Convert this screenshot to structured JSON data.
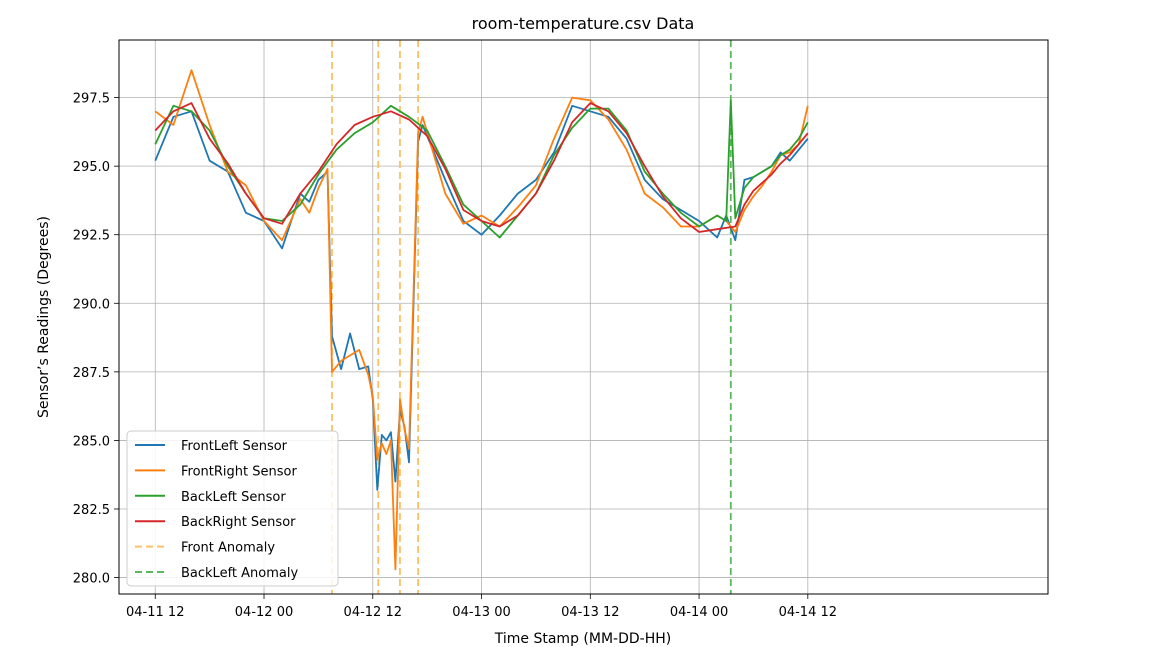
{
  "chart_data": {
    "type": "line",
    "title": "room-temperature.csv Data",
    "xlabel": "Time Stamp (MM-DD-HH)",
    "ylabel": "Sensor’s Readings (Degrees)",
    "x_unit": "hours",
    "x_origin": "04-11 12",
    "xlim": [
      -4,
      98.5
    ],
    "ylim": [
      279.4,
      299.6
    ],
    "x_ticks": [
      {
        "x": 0,
        "label": "04-11 12"
      },
      {
        "x": 12,
        "label": "04-12 00"
      },
      {
        "x": 24,
        "label": "04-12 12"
      },
      {
        "x": 36,
        "label": "04-13 00"
      },
      {
        "x": 48,
        "label": "04-13 12"
      },
      {
        "x": 60,
        "label": "04-14 00"
      },
      {
        "x": 72,
        "label": "04-14 12"
      }
    ],
    "y_ticks": [
      {
        "y": 280.0,
        "label": "280.0"
      },
      {
        "y": 282.5,
        "label": "282.5"
      },
      {
        "y": 285.0,
        "label": "285.0"
      },
      {
        "y": 287.5,
        "label": "287.5"
      },
      {
        "y": 290.0,
        "label": "290.0"
      },
      {
        "y": 292.5,
        "label": "292.5"
      },
      {
        "y": 295.0,
        "label": "295.0"
      },
      {
        "y": 297.5,
        "label": "297.5"
      }
    ],
    "grid": true,
    "legend_position": "lower-left",
    "series": [
      {
        "name": "FrontLeft Sensor",
        "color": "#1f77b4",
        "x": [
          0,
          2,
          4,
          6,
          8,
          10,
          12,
          14,
          16,
          17,
          18,
          19,
          19.5,
          20.5,
          21.5,
          22.5,
          23.5,
          24,
          24.5,
          25,
          25.5,
          26,
          26.5,
          27,
          27.5,
          28,
          29,
          29.5,
          32,
          34,
          36,
          38,
          40,
          42,
          44,
          46,
          48,
          50,
          52,
          54,
          56,
          58,
          60,
          62,
          63,
          64,
          65,
          66,
          67,
          68,
          69,
          70,
          71,
          72
        ],
        "y": [
          295.2,
          296.8,
          297.0,
          295.2,
          294.8,
          293.3,
          293.0,
          292.0,
          294.0,
          293.7,
          294.5,
          294.8,
          288.8,
          287.6,
          288.9,
          287.6,
          287.7,
          286.5,
          283.2,
          285.2,
          285.0,
          285.3,
          283.5,
          286.1,
          285.5,
          284.2,
          295.9,
          296.5,
          294.5,
          293.0,
          292.5,
          293.2,
          294.0,
          294.5,
          295.5,
          297.2,
          297.0,
          296.8,
          296.0,
          294.5,
          293.8,
          293.4,
          293.0,
          292.4,
          293.2,
          292.3,
          294.5,
          294.6,
          294.8,
          295.0,
          295.5,
          295.2,
          295.6,
          296.0
        ]
      },
      {
        "name": "FrontRight Sensor",
        "color": "#ff7f0e",
        "x": [
          0,
          2,
          4,
          6,
          8,
          10,
          12,
          14,
          16,
          17,
          18,
          19,
          19.5,
          20.5,
          21.5,
          22.5,
          23.5,
          24,
          24.5,
          25,
          25.5,
          26,
          26.5,
          27,
          27.5,
          28,
          29,
          29.5,
          32,
          34,
          36,
          38,
          40,
          42,
          44,
          46,
          48,
          50,
          52,
          54,
          56,
          58,
          60,
          62,
          63,
          64,
          65,
          66,
          67,
          68,
          69,
          70,
          71,
          72
        ],
        "y": [
          297.0,
          296.5,
          298.5,
          296.5,
          294.8,
          294.3,
          293.0,
          292.3,
          293.8,
          293.3,
          294.2,
          294.9,
          287.5,
          287.9,
          288.1,
          288.3,
          287.4,
          286.6,
          284.3,
          284.9,
          284.5,
          285.0,
          280.3,
          286.5,
          285.4,
          284.7,
          296.2,
          296.8,
          294.0,
          292.9,
          293.2,
          292.8,
          293.5,
          294.3,
          296.0,
          297.5,
          297.4,
          296.7,
          295.6,
          294.0,
          293.5,
          292.8,
          292.8,
          293.2,
          293.0,
          292.6,
          293.4,
          293.9,
          294.3,
          294.8,
          295.4,
          295.5,
          295.8,
          297.2
        ]
      },
      {
        "name": "BackLeft Sensor",
        "color": "#2ca02c",
        "x": [
          0,
          2,
          4,
          6,
          8,
          10,
          12,
          14,
          16,
          18,
          20,
          22,
          24,
          26,
          28,
          30,
          32,
          34,
          36,
          38,
          40,
          42,
          44,
          46,
          48,
          50,
          52,
          54,
          56,
          58,
          60,
          62,
          63,
          63.5,
          64,
          65,
          66,
          67,
          68,
          69,
          70,
          71,
          72
        ],
        "y": [
          295.8,
          297.2,
          297.0,
          296.3,
          295.0,
          294.0,
          293.1,
          293.0,
          293.6,
          294.7,
          295.6,
          296.2,
          296.6,
          297.2,
          296.8,
          296.3,
          295.0,
          293.6,
          293.0,
          292.4,
          293.2,
          294.0,
          295.4,
          296.4,
          297.1,
          297.1,
          296.3,
          294.8,
          294.0,
          293.3,
          292.8,
          293.2,
          293.0,
          297.4,
          293.1,
          294.2,
          294.6,
          294.8,
          295.0,
          295.4,
          295.6,
          296.0,
          296.6
        ]
      },
      {
        "name": "BackRight Sensor",
        "color": "#d62728",
        "x": [
          0,
          2,
          4,
          6,
          8,
          10,
          12,
          14,
          16,
          18,
          20,
          22,
          24,
          26,
          28,
          30,
          32,
          34,
          36,
          38,
          40,
          42,
          44,
          46,
          48,
          50,
          52,
          54,
          56,
          58,
          60,
          62,
          64,
          65,
          66,
          67,
          68,
          69,
          70,
          71,
          72
        ],
        "y": [
          296.3,
          297.0,
          297.3,
          296.0,
          295.1,
          294.0,
          293.1,
          292.9,
          294.0,
          294.8,
          295.8,
          296.5,
          296.8,
          297.0,
          296.7,
          296.1,
          294.9,
          293.4,
          293.0,
          292.8,
          293.2,
          294.0,
          295.2,
          296.6,
          297.3,
          297.0,
          296.2,
          295.0,
          293.9,
          293.1,
          292.6,
          292.7,
          292.8,
          293.6,
          294.1,
          294.4,
          294.7,
          295.1,
          295.4,
          295.8,
          296.2
        ]
      }
    ],
    "anomaly_lines": [
      {
        "name": "Front Anomaly",
        "color": "#ffbf66",
        "x": [
          19.5,
          24.6,
          27.0,
          29.0
        ],
        "style": "dashed"
      },
      {
        "name": "BackLeft Anomaly",
        "color": "#5cb85c",
        "x": [
          63.5
        ],
        "style": "dashed"
      }
    ]
  }
}
